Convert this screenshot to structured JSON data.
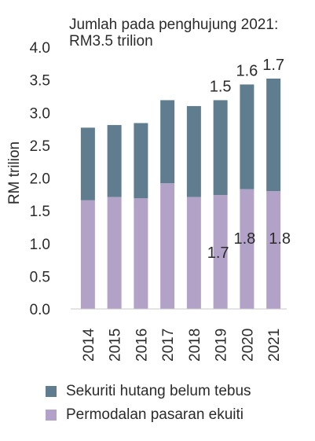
{
  "chart_data": {
    "type": "bar",
    "stacked": true,
    "title": "Jumlah pada penghujung 2021:\nRM3.5 trilion",
    "title_lines": [
      "Jumlah pada penghujung 2021:",
      "RM3.5 trilion"
    ],
    "ylabel": "RM trilion",
    "xlabel": "",
    "ylim": [
      0,
      4.0
    ],
    "yticks": [
      "0.0",
      "0.5",
      "1.0",
      "1.5",
      "2.0",
      "2.5",
      "3.0",
      "3.5",
      "4.0"
    ],
    "categories": [
      "2014",
      "2015",
      "2016",
      "2017",
      "2018",
      "2019",
      "2020",
      "2021"
    ],
    "series": [
      {
        "name": "Permodalan pasaran ekuiti",
        "color": "#b3a2c7",
        "values": [
          1.66,
          1.71,
          1.69,
          1.92,
          1.71,
          1.74,
          1.83,
          1.8
        ]
      },
      {
        "name": "Sekuriti hutang belum tebus",
        "color": "#5f7d8f",
        "values": [
          1.11,
          1.1,
          1.15,
          1.27,
          1.39,
          1.45,
          1.6,
          1.72
        ]
      }
    ],
    "annotations": [
      {
        "category": "2019",
        "series": "Permodalan pasaran ekuiti",
        "text": "1.7"
      },
      {
        "category": "2020",
        "series": "Permodalan pasaran ekuiti",
        "text": "1.8"
      },
      {
        "category": "2021",
        "series": "Permodalan pasaran ekuiti",
        "text": "1.8"
      },
      {
        "category": "2019",
        "series": "Sekuriti hutang belum tebus",
        "text": "1.5"
      },
      {
        "category": "2020",
        "series": "Sekuriti hutang belum tebus",
        "text": "1.6"
      },
      {
        "category": "2021",
        "series": "Sekuriti hutang belum tebus",
        "text": "1.7"
      }
    ],
    "legend": {
      "position": "bottom",
      "items": [
        "Sekuriti hutang belum tebus",
        "Permodalan pasaran ekuiti"
      ]
    }
  }
}
